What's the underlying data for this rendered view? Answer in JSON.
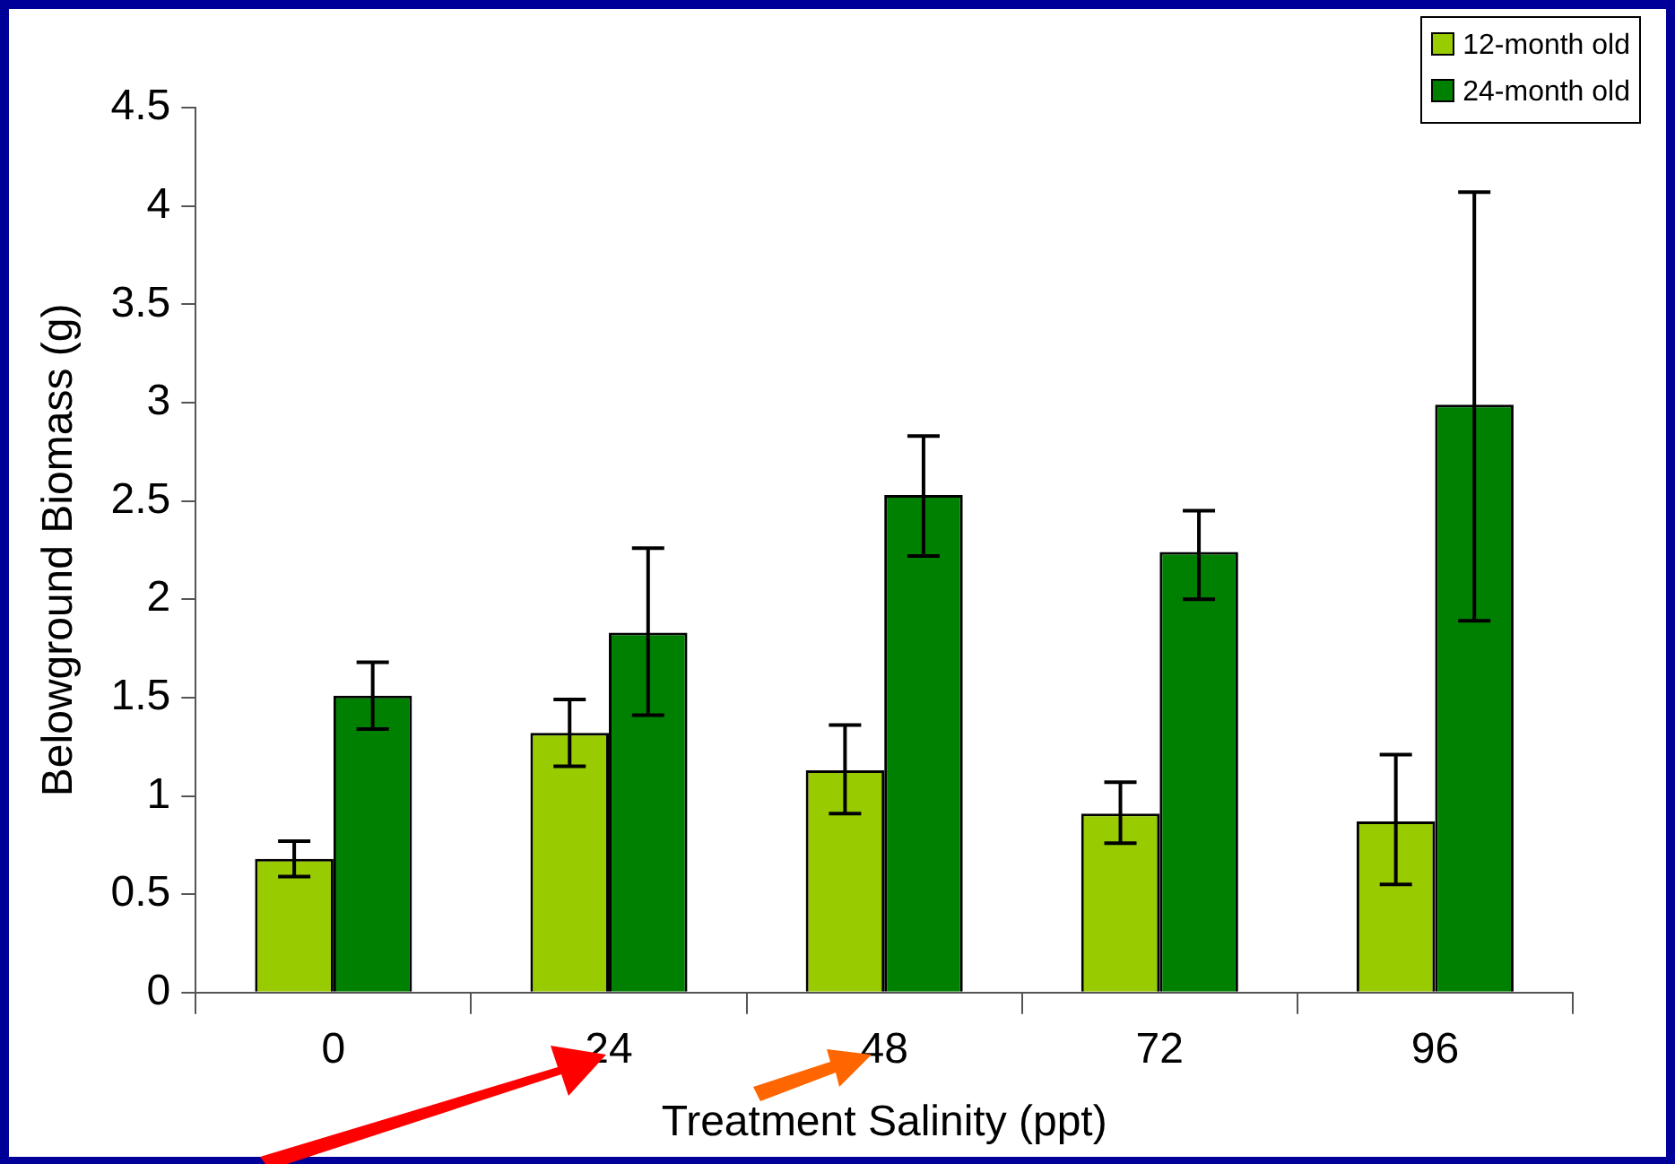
{
  "chart_data": {
    "type": "bar",
    "xlabel": "Treatment Salinity (ppt)",
    "ylabel": "Belowground Biomass (g)",
    "categories": [
      "0",
      "24",
      "48",
      "72",
      "96"
    ],
    "series": [
      {
        "name": "12-month old",
        "color": "#99cc00",
        "values": [
          0.68,
          1.32,
          1.13,
          0.91,
          0.87
        ],
        "errors": [
          [
            0.59,
            0.77
          ],
          [
            1.15,
            1.49
          ],
          [
            0.91,
            1.36
          ],
          [
            0.76,
            1.07
          ],
          [
            0.55,
            1.21
          ]
        ]
      },
      {
        "name": "24-month old",
        "color": "#008000",
        "values": [
          1.51,
          1.83,
          2.53,
          2.24,
          2.99
        ],
        "errors": [
          [
            1.34,
            1.68
          ],
          [
            1.41,
            2.26
          ],
          [
            2.22,
            2.83
          ],
          [
            2.0,
            2.45
          ],
          [
            1.89,
            4.07
          ]
        ]
      }
    ],
    "ylim": [
      0,
      4.5
    ],
    "yticks": [
      0,
      0.5,
      1,
      1.5,
      2,
      2.5,
      3,
      3.5,
      4,
      4.5
    ],
    "grid": false,
    "legend": "top right"
  }
}
